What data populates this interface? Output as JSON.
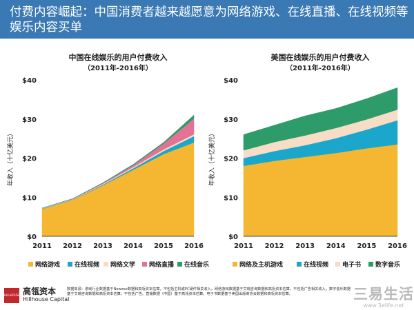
{
  "header": {
    "title": "付费内容崛起：中国消费者越来越愿意为网络游戏、在线直播、在线视频等娱乐内容买单",
    "background": "#3a79b3"
  },
  "chart_data": [
    {
      "type": "area",
      "stacked": true,
      "title": "中国在线娱乐的用户付费收入",
      "subtitle": "（2011年-2016年）",
      "ylabel": "年收入（十亿美元）",
      "xlabel": "",
      "x": [
        "2011",
        "2012",
        "2013",
        "2014",
        "2015",
        "2016"
      ],
      "ylim": [
        0,
        40
      ],
      "yticks": [
        "$0",
        "$10",
        "$20",
        "$30",
        "$40"
      ],
      "grid": false,
      "legend": "bottom",
      "series": [
        {
          "name": "网络游戏",
          "color": "#f5b731",
          "values": [
            7,
            9.3,
            13,
            17,
            21,
            24
          ]
        },
        {
          "name": "在线视频",
          "color": "#1ba7cb",
          "values": [
            0.1,
            0.1,
            0.2,
            0.4,
            0.8,
            1.6
          ]
        },
        {
          "name": "网络文学",
          "color": "#f7dcc6",
          "values": [
            0.1,
            0.1,
            0.2,
            0.3,
            0.4,
            0.5
          ]
        },
        {
          "name": "网络直播",
          "color": "#e37396",
          "values": [
            0,
            0.1,
            0.2,
            0.5,
            1.5,
            4
          ]
        },
        {
          "name": "在线音乐",
          "color": "#2d9b6a",
          "values": [
            0,
            0,
            0.1,
            0.2,
            0.3,
            0.9
          ]
        }
      ]
    },
    {
      "type": "area",
      "stacked": true,
      "title": "美国在线娱乐的用户付费收入",
      "subtitle": "（2011年-2016年）",
      "ylabel": "年收入（十亿美元）",
      "xlabel": "",
      "x": [
        "2011",
        "2012",
        "2013",
        "2014",
        "2015",
        "2016"
      ],
      "ylim": [
        0,
        40
      ],
      "yticks": [
        "$0",
        "$10",
        "$20",
        "$30",
        "$40"
      ],
      "grid": false,
      "legend": "bottom",
      "series": [
        {
          "name": "网络及主机游戏",
          "color": "#f5b731",
          "values": [
            18,
            19.3,
            20.3,
            21.3,
            22.5,
            23.5
          ]
        },
        {
          "name": "在线视频",
          "color": "#1ba7cb",
          "values": [
            2,
            2.5,
            3,
            3.8,
            4.8,
            6.2
          ]
        },
        {
          "name": "电子书",
          "color": "#f7dcc6",
          "values": [
            2,
            2.3,
            2.5,
            2.6,
            2.6,
            2.7
          ]
        },
        {
          "name": "数字音乐",
          "color": "#2d9b6a",
          "values": [
            4,
            4.3,
            5,
            5,
            5.3,
            5.6
          ]
        }
      ]
    }
  ],
  "footer": {
    "brand_cn": "高瓴资本",
    "brand_en": "Hillhouse Capital",
    "logo_text": "HILLHOUSE",
    "source_text": "数据来源：游戏行业数据基于Newzoo数据和高瓴资本估算，不包括主机或PC硬件相关收入。网络游戏数据基于艾瑞咨询数据和高瓴资本估算，不包括广告相关收入。数字音乐数据基于艾瑞咨询数据和高瓴资本估算，不包括广告。直播数据（中国）基于高瓴资本估算。电子书数据基于美国出版商协会数据和高瓴资本估算。"
  },
  "watermark": {
    "cn": "三易生活",
    "url": "www.3elife.net"
  }
}
